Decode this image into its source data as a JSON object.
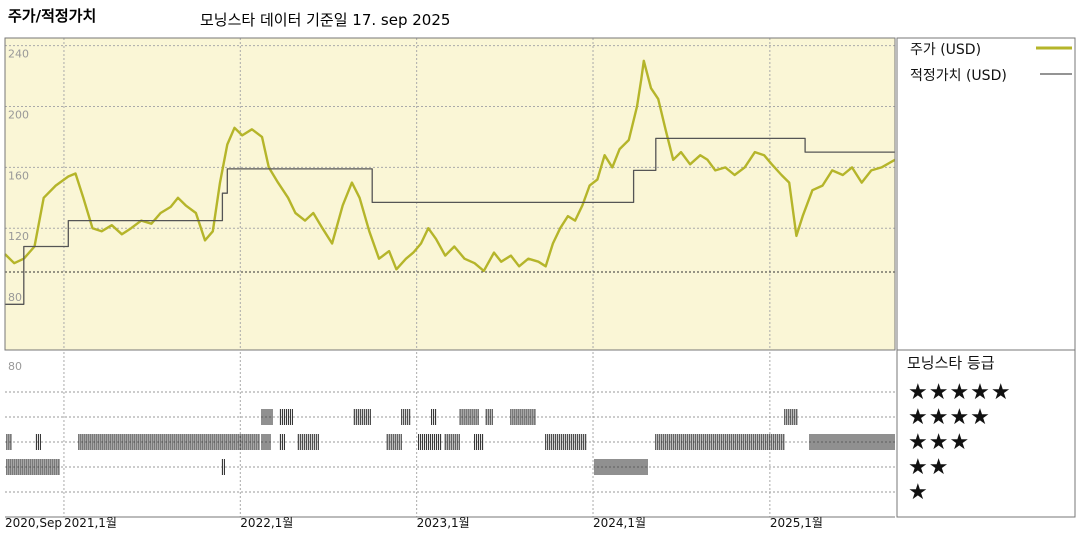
{
  "header": {
    "left_title": "주가/적정가치",
    "subtitle": "모닝스타 데이터 기준일 17. sep 2025"
  },
  "legend": {
    "price_label": "주가 (USD)",
    "fair_label": "적정가치 (USD)",
    "rating_title": "모닝스타 등급",
    "stars": [
      "★★★★★",
      "★★★★",
      "★★★",
      "★★",
      "★"
    ]
  },
  "colors": {
    "price_line": "#b5b52a",
    "fair_line": "#555555",
    "plot_bg": "#faf6d6",
    "rating_bars": "#222222"
  },
  "chart_data": {
    "type": "line",
    "title": "",
    "ylim": [
      40,
      245
    ],
    "y_ticks": [
      80,
      120,
      160,
      200,
      240
    ],
    "y_tick_labels": [
      "80",
      "120",
      "160",
      "200",
      "240"
    ],
    "x_ticks": [
      "2020-09-01",
      "2021-01-01",
      "2022-01-01",
      "2023-01-01",
      "2024-01-01",
      "2025-01-01"
    ],
    "x_tick_labels": [
      "2020,Sep",
      "2021,1월",
      "2022,1월",
      "2023,1월",
      "2024,1월",
      "2025,1월"
    ],
    "x_range": [
      "2020-09-01",
      "2025-09-17"
    ],
    "series": [
      {
        "name": "주가 (USD)",
        "color": "#b5b52a",
        "points": [
          [
            "2020-09-01",
            103
          ],
          [
            "2020-09-20",
            97
          ],
          [
            "2020-10-10",
            100
          ],
          [
            "2020-11-01",
            108
          ],
          [
            "2020-11-20",
            140
          ],
          [
            "2020-12-15",
            148
          ],
          [
            "2021-01-10",
            154
          ],
          [
            "2021-01-25",
            156
          ],
          [
            "2021-02-10",
            140
          ],
          [
            "2021-03-01",
            120
          ],
          [
            "2021-03-20",
            118
          ],
          [
            "2021-04-10",
            122
          ],
          [
            "2021-05-01",
            116
          ],
          [
            "2021-05-20",
            120
          ],
          [
            "2021-06-10",
            125
          ],
          [
            "2021-07-01",
            123
          ],
          [
            "2021-07-20",
            130
          ],
          [
            "2021-08-10",
            134
          ],
          [
            "2021-08-25",
            140
          ],
          [
            "2021-09-10",
            135
          ],
          [
            "2021-10-01",
            130
          ],
          [
            "2021-10-20",
            112
          ],
          [
            "2021-11-05",
            118
          ],
          [
            "2021-11-20",
            150
          ],
          [
            "2021-12-05",
            175
          ],
          [
            "2021-12-20",
            186
          ],
          [
            "2022-01-05",
            181
          ],
          [
            "2022-01-25",
            185
          ],
          [
            "2022-02-15",
            180
          ],
          [
            "2022-03-01",
            160
          ],
          [
            "2022-03-20",
            150
          ],
          [
            "2022-04-10",
            140
          ],
          [
            "2022-04-25",
            130
          ],
          [
            "2022-05-15",
            125
          ],
          [
            "2022-06-01",
            130
          ],
          [
            "2022-06-20",
            120
          ],
          [
            "2022-07-10",
            110
          ],
          [
            "2022-08-01",
            135
          ],
          [
            "2022-08-20",
            150
          ],
          [
            "2022-09-05",
            140
          ],
          [
            "2022-09-25",
            118
          ],
          [
            "2022-10-15",
            100
          ],
          [
            "2022-11-05",
            105
          ],
          [
            "2022-11-20",
            93
          ],
          [
            "2022-12-10",
            100
          ],
          [
            "2022-12-25",
            104
          ],
          [
            "2023-01-10",
            110
          ],
          [
            "2023-01-25",
            120
          ],
          [
            "2023-02-10",
            113
          ],
          [
            "2023-03-01",
            102
          ],
          [
            "2023-03-20",
            108
          ],
          [
            "2023-04-10",
            100
          ],
          [
            "2023-05-01",
            97
          ],
          [
            "2023-05-20",
            92
          ],
          [
            "2023-06-10",
            104
          ],
          [
            "2023-06-25",
            98
          ],
          [
            "2023-07-15",
            102
          ],
          [
            "2023-08-01",
            95
          ],
          [
            "2023-08-20",
            100
          ],
          [
            "2023-09-10",
            98
          ],
          [
            "2023-09-25",
            95
          ],
          [
            "2023-10-10",
            110
          ],
          [
            "2023-10-25",
            120
          ],
          [
            "2023-11-10",
            128
          ],
          [
            "2023-11-25",
            125
          ],
          [
            "2023-12-10",
            135
          ],
          [
            "2023-12-25",
            148
          ],
          [
            "2024-01-10",
            152
          ],
          [
            "2024-01-25",
            168
          ],
          [
            "2024-02-10",
            160
          ],
          [
            "2024-02-25",
            172
          ],
          [
            "2024-03-15",
            178
          ],
          [
            "2024-04-01",
            200
          ],
          [
            "2024-04-10",
            218
          ],
          [
            "2024-04-15",
            230
          ],
          [
            "2024-04-30",
            212
          ],
          [
            "2024-05-15",
            205
          ],
          [
            "2024-05-30",
            185
          ],
          [
            "2024-06-15",
            165
          ],
          [
            "2024-07-01",
            170
          ],
          [
            "2024-07-20",
            162
          ],
          [
            "2024-08-10",
            168
          ],
          [
            "2024-08-25",
            165
          ],
          [
            "2024-09-10",
            158
          ],
          [
            "2024-10-01",
            160
          ],
          [
            "2024-10-20",
            155
          ],
          [
            "2024-11-10",
            160
          ],
          [
            "2024-12-01",
            170
          ],
          [
            "2024-12-20",
            168
          ],
          [
            "2025-01-05",
            162
          ],
          [
            "2025-01-25",
            155
          ],
          [
            "2025-02-10",
            150
          ],
          [
            "2025-02-25",
            115
          ],
          [
            "2025-03-10",
            128
          ],
          [
            "2025-03-30",
            145
          ],
          [
            "2025-04-20",
            148
          ],
          [
            "2025-05-10",
            158
          ],
          [
            "2025-06-01",
            155
          ],
          [
            "2025-06-20",
            160
          ],
          [
            "2025-07-10",
            150
          ],
          [
            "2025-07-30",
            158
          ],
          [
            "2025-08-20",
            160
          ],
          [
            "2025-09-17",
            165
          ]
        ]
      },
      {
        "name": "적정가치 (USD)",
        "color": "#555555",
        "step": true,
        "points": [
          [
            "2020-09-01",
            70
          ],
          [
            "2020-10-10",
            70
          ],
          [
            "2020-10-10",
            108
          ],
          [
            "2021-01-10",
            108
          ],
          [
            "2021-01-10",
            125
          ],
          [
            "2021-11-25",
            125
          ],
          [
            "2021-11-25",
            143
          ],
          [
            "2021-12-05",
            143
          ],
          [
            "2021-12-05",
            159
          ],
          [
            "2022-10-01",
            159
          ],
          [
            "2022-10-01",
            137
          ],
          [
            "2024-03-25",
            137
          ],
          [
            "2024-03-25",
            158
          ],
          [
            "2024-05-10",
            158
          ],
          [
            "2024-05-10",
            179
          ],
          [
            "2025-03-15",
            179
          ],
          [
            "2025-03-15",
            170
          ],
          [
            "2025-09-17",
            170
          ]
        ]
      }
    ],
    "rating_segments": [
      {
        "stars": 4,
        "start": "2022-02-15",
        "end": "2022-03-10"
      },
      {
        "stars": 4,
        "start": "2022-03-25",
        "end": "2022-04-20"
      },
      {
        "stars": 4,
        "start": "2022-08-25",
        "end": "2022-10-01"
      },
      {
        "stars": 4,
        "start": "2022-12-01",
        "end": "2022-12-20"
      },
      {
        "stars": 4,
        "start": "2023-02-01",
        "end": "2023-02-10"
      },
      {
        "stars": 4,
        "start": "2023-04-01",
        "end": "2023-05-10"
      },
      {
        "stars": 4,
        "start": "2023-05-25",
        "end": "2023-06-10"
      },
      {
        "stars": 4,
        "start": "2023-07-15",
        "end": "2023-09-05"
      },
      {
        "stars": 4,
        "start": "2025-02-01",
        "end": "2025-02-28"
      },
      {
        "stars": 3,
        "start": "2020-09-05",
        "end": "2020-09-15"
      },
      {
        "stars": 3,
        "start": "2020-11-05",
        "end": "2020-11-15"
      },
      {
        "stars": 3,
        "start": "2021-02-01",
        "end": "2022-02-10"
      },
      {
        "stars": 3,
        "start": "2022-02-15",
        "end": "2022-03-05"
      },
      {
        "stars": 3,
        "start": "2022-03-25",
        "end": "2022-04-05"
      },
      {
        "stars": 3,
        "start": "2022-05-01",
        "end": "2022-06-15"
      },
      {
        "stars": 3,
        "start": "2022-11-01",
        "end": "2022-11-30"
      },
      {
        "stars": 3,
        "start": "2023-01-05",
        "end": "2023-02-20"
      },
      {
        "stars": 3,
        "start": "2023-03-01",
        "end": "2023-03-30"
      },
      {
        "stars": 3,
        "start": "2023-05-01",
        "end": "2023-05-20"
      },
      {
        "stars": 3,
        "start": "2023-09-25",
        "end": "2023-12-20"
      },
      {
        "stars": 3,
        "start": "2024-05-10",
        "end": "2025-02-01"
      },
      {
        "stars": 3,
        "start": "2025-03-25",
        "end": "2025-09-17"
      },
      {
        "stars": 2,
        "start": "2020-09-05",
        "end": "2020-12-25"
      },
      {
        "stars": 2,
        "start": "2021-11-25",
        "end": "2021-11-30"
      },
      {
        "stars": 2,
        "start": "2024-01-05",
        "end": "2024-04-25"
      }
    ]
  }
}
